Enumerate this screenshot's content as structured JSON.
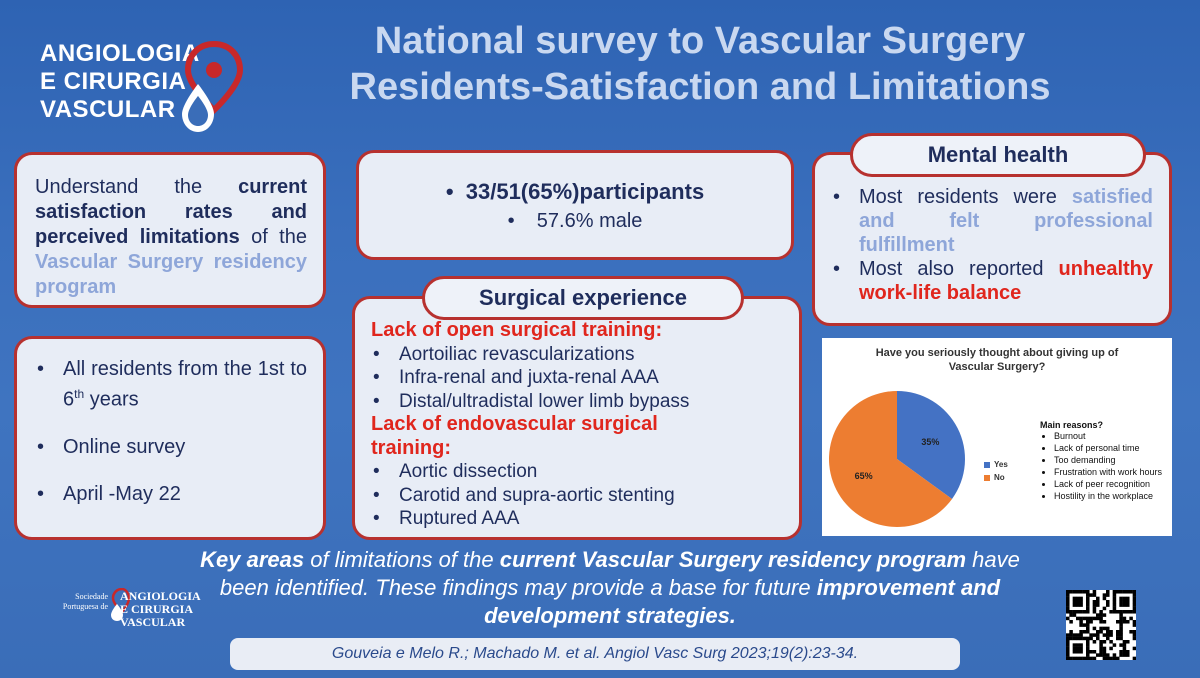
{
  "logo": {
    "line1": "ANGIOLOGIA",
    "line2": "E CIRURGIA",
    "line3": "VASCULAR"
  },
  "title": {
    "line1": "National survey to Vascular Surgery",
    "line2": "Residents-Satisfaction and Limitations"
  },
  "objective": {
    "p1": "Understand the ",
    "p2": "current satisfaction rates and perceived limitations",
    "p3": " of the ",
    "p4": "Vascular Surgery residency program"
  },
  "population": {
    "item1": "All residents from the 1st to 6",
    "item1_sup": "th",
    "item1_end": " years",
    "item2": "Online survey",
    "item3": "April -May 22"
  },
  "participants": {
    "line1": "33/51(65%)participants",
    "line2": "57.6% male"
  },
  "surgical": {
    "title": "Surgical experience",
    "open_heading": "Lack of open surgical training:",
    "open_items": [
      "Aortoiliac revascularizations",
      "Infra-renal and juxta-renal AAA",
      "Distal/ultradistal lower limb bypass"
    ],
    "endo_heading": "Lack of endovascular surgical training:",
    "endo_items": [
      "Aortic dissection",
      "Carotid and supra-aortic stenting",
      "Ruptured AAA"
    ]
  },
  "mental": {
    "title": "Mental health",
    "i1a": "Most residents were ",
    "i1b": "satisfied and felt professional fulfillment",
    "i2a": "Most also reported ",
    "i2b": "unhealthy work-life balance"
  },
  "chart_data": {
    "type": "pie",
    "title": "Have you seriously thought about giving up of Vascular Surgery?",
    "categories": [
      "Yes",
      "No"
    ],
    "values": [
      35,
      65
    ],
    "labels": [
      "35%",
      "65%"
    ],
    "colors": [
      "#4472c4",
      "#ed7d31"
    ],
    "legend": "right"
  },
  "reasons": {
    "heading": "Main reasons?",
    "items": [
      "Burnout",
      "Lack of personal time",
      "Too demanding",
      "Frustration with work hours",
      "Lack of peer recognition",
      "Hostility in the workplace"
    ]
  },
  "conclusion": {
    "a": "Key areas",
    "b": " of limitations of the ",
    "c": "current Vascular Surgery residency program",
    "d": " have been identified. These findings may provide a base for future ",
    "e": "improvement and development strategies."
  },
  "footer_logo": {
    "small1": "Sociedade",
    "small2": "Portuguesa de",
    "big1": "ANGIOLOGIA",
    "big2": "E CIRURGIA",
    "big3": "VASCULAR"
  },
  "citation": "Gouveia e Melo R.; Machado M. et al. Angiol Vasc Surg 2023;19(2):23-34.",
  "qr": {
    "label": "qr-code"
  }
}
